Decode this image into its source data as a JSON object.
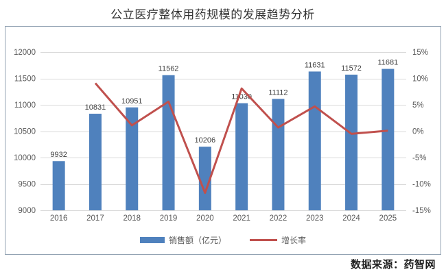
{
  "page": {
    "title": "公立医疗整体用药规模的发展趋势分析",
    "source_note": "数据来源：药智网"
  },
  "chart_data": {
    "type": "combo-bar-line",
    "title": "公立医疗整体用药规模的发展趋势分析",
    "categories": [
      "2016",
      "2017",
      "2018",
      "2019",
      "2020",
      "2021",
      "2022",
      "2023",
      "2024",
      "2025"
    ],
    "series": [
      {
        "name": "销售额（亿元）",
        "type": "bar",
        "axis": "left",
        "color": "#4F81BD",
        "values": [
          9932,
          10831,
          10951,
          11562,
          10206,
          11030,
          11112,
          11631,
          11572,
          11681
        ],
        "data_labels": true
      },
      {
        "name": "增长率",
        "type": "line",
        "axis": "right",
        "color": "#C0504D",
        "values": [
          null,
          9.1,
          1.1,
          5.6,
          -11.7,
          8.1,
          0.7,
          4.7,
          -0.5,
          0.1
        ],
        "data_labels": false
      }
    ],
    "left_axis": {
      "min": 9000,
      "max": 12000,
      "tick_values": [
        12000,
        11500,
        11000,
        10500,
        10000,
        9500,
        9000
      ],
      "tick_labels": [
        "12000",
        "11500",
        "11000",
        "10500",
        "10000",
        "9500",
        "9000"
      ]
    },
    "right_axis": {
      "min": -15,
      "max": 15,
      "tick_values": [
        15,
        10,
        5,
        0,
        -5,
        -10,
        -15
      ],
      "tick_labels": [
        "15%",
        "10%",
        "5%",
        "0%",
        "-5%",
        "-10%",
        "-15%"
      ]
    },
    "legend": {
      "position": "bottom",
      "items": [
        {
          "label": "销售额（亿元）",
          "swatch": "bar",
          "color": "#4F81BD"
        },
        {
          "label": "增长率",
          "swatch": "line",
          "color": "#C0504D"
        }
      ]
    },
    "grid": true,
    "colors": {
      "gridline": "#D9D9D9",
      "axis_text": "#595959",
      "data_label_text": "#404040",
      "box_border": "#93A3B3"
    }
  }
}
